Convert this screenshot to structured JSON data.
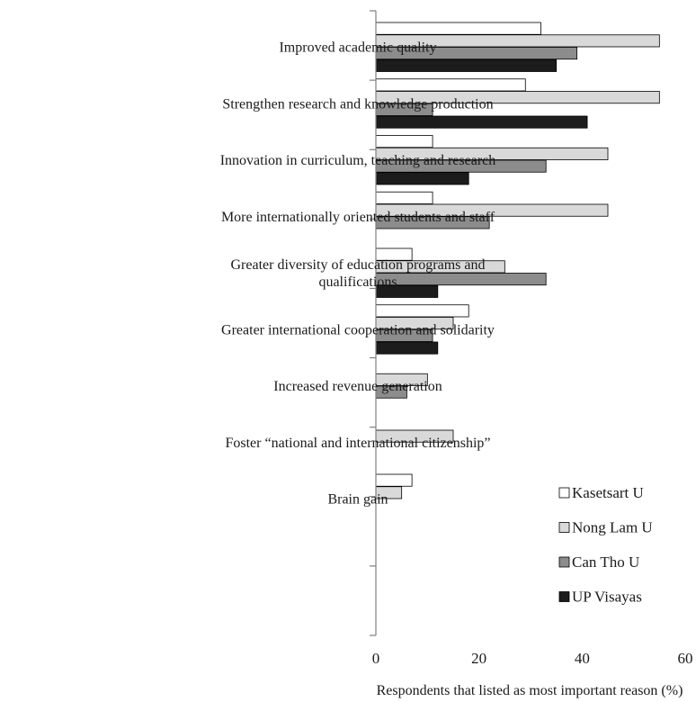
{
  "chart_data": {
    "type": "bar",
    "orientation": "horizontal",
    "categories": [
      "Improved academic quality",
      "Strengthen research and knowledge production",
      "Innovation in curriculum, teaching and research",
      "More internationally oriented students and staff",
      "Greater diversity of education programs and qualifications",
      "Greater international cooperation and solidarity",
      "Increased revenue generation",
      "Foster “national and international citizenship”",
      "Brain gain"
    ],
    "category_lines": [
      [
        "Improved academic quality"
      ],
      [
        "Strengthen research and knowledge production"
      ],
      [
        "Innovation in curriculum, teaching and research"
      ],
      [
        "More internationally oriented students and staff"
      ],
      [
        "Greater diversity of education programs and",
        "qualifications"
      ],
      [
        "Greater international cooperation and solidarity"
      ],
      [
        "Increased revenue generation"
      ],
      [
        "Foster “national and international citizenship”"
      ],
      [
        "Brain gain"
      ]
    ],
    "series": [
      {
        "name": "Kasetsart U",
        "color": "#ffffff",
        "values": [
          32,
          29,
          11,
          11,
          7,
          18,
          0,
          0,
          7
        ]
      },
      {
        "name": "Nong Lam U",
        "color": "#d9d9d9",
        "values": [
          55,
          55,
          45,
          45,
          25,
          15,
          10,
          15,
          5
        ]
      },
      {
        "name": "Can Tho U",
        "color": "#8c8c8c",
        "values": [
          39,
          11,
          33,
          22,
          33,
          11,
          6,
          0,
          0
        ]
      },
      {
        "name": "UP Visayas",
        "color": "#1c1c1c",
        "values": [
          35,
          41,
          18,
          0,
          12,
          12,
          0,
          0,
          0
        ]
      }
    ],
    "xlim": [
      0,
      60
    ],
    "xticks": [
      0,
      20,
      40,
      60
    ],
    "xlabel": "Respondents that listed as most important reason (%)",
    "ylabel": "",
    "legend_position": "bottom-right",
    "grid": false
  }
}
